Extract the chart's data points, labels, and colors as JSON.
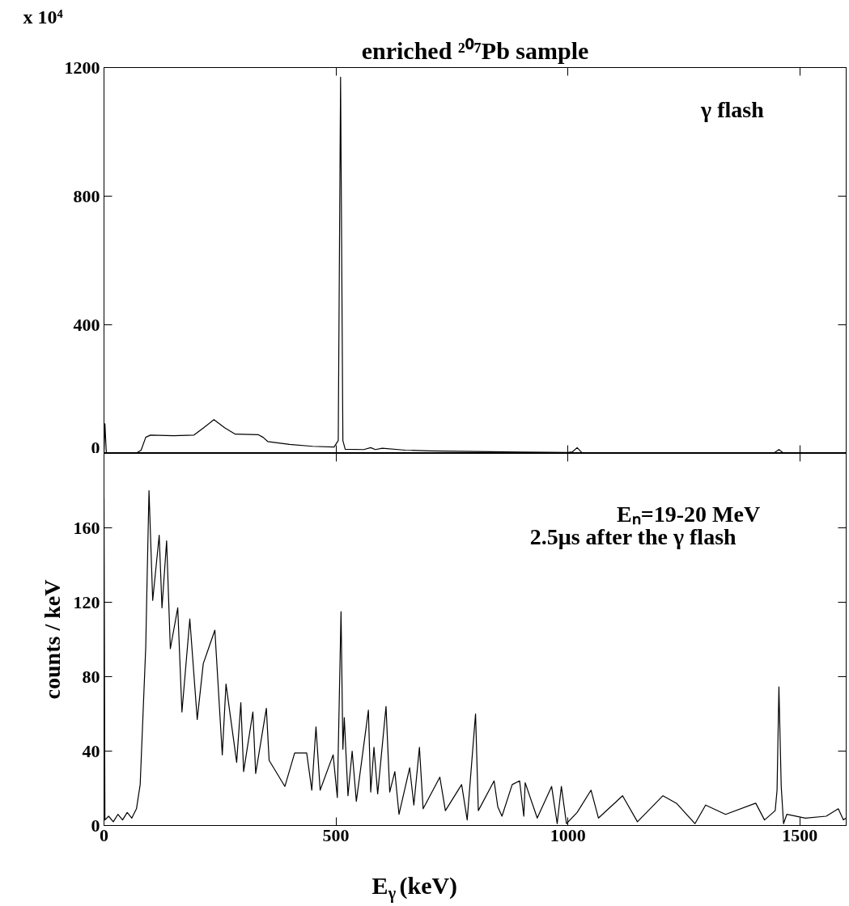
{
  "chart_data": [
    {
      "type": "line",
      "title": "enriched ²⁰⁷Pb sample",
      "annotations": [
        "x 10⁴",
        "γ flash"
      ],
      "xlim": [
        0,
        1600
      ],
      "xticks": [
        0,
        500,
        1000,
        1500
      ],
      "ylim": [
        0,
        1200
      ],
      "yticks": [
        0,
        400,
        800,
        1200
      ],
      "tick_labels": "y",
      "grid": false,
      "marker": "none",
      "line_style": "solid",
      "series": [
        {
          "color": "#000000",
          "x": [
            0,
            2,
            5,
            70,
            80,
            90,
            100,
            150,
            194,
            215,
            237,
            260,
            283,
            333,
            343,
            353,
            400,
            450,
            496,
            505,
            510,
            515,
            520,
            560,
            575,
            585,
            600,
            650,
            700,
            800,
            900,
            1000,
            1010,
            1020,
            1030,
            1100,
            1200,
            1300,
            1400,
            1445,
            1455,
            1465,
            1500,
            1600
          ],
          "values": [
            0,
            92,
            2,
            1,
            10,
            50,
            57,
            55,
            57,
            80,
            105,
            80,
            60,
            58,
            50,
            37,
            28,
            22,
            20,
            40,
            1170,
            40,
            13,
            12,
            18,
            12,
            16,
            10,
            8,
            6,
            4,
            3,
            5,
            18,
            3,
            2,
            2,
            1,
            1,
            2,
            12,
            1,
            1,
            1
          ]
        }
      ]
    },
    {
      "type": "line",
      "xlabel": "E$_{γ}$(keV)",
      "ylabel": "counts / keV",
      "annotations": [
        "Eₙ=19-20 MeV",
        "2.5μs after the γ  flash"
      ],
      "xlim": [
        0,
        1600
      ],
      "xticks": [
        0,
        500,
        1000,
        1500
      ],
      "ylim": [
        0,
        200
      ],
      "yticks": [
        0,
        40,
        80,
        120,
        160
      ],
      "grid": false,
      "marker": "none",
      "line_style": "solid",
      "series": [
        {
          "color": "#000000",
          "x": [
            0,
            2,
            10,
            20,
            30,
            40,
            50,
            60,
            70,
            78,
            90,
            93,
            97,
            105,
            119,
            125,
            135,
            143,
            159,
            168,
            185,
            201,
            214,
            239,
            255,
            263,
            286,
            295,
            301,
            321,
            327,
            350,
            356,
            390,
            411,
            437,
            448,
            457,
            466,
            494,
            503,
            511,
            515,
            518,
            526,
            535,
            544,
            570,
            575,
            582,
            590,
            608,
            616,
            627,
            636,
            659,
            668,
            680,
            688,
            724,
            736,
            771,
            783,
            801,
            807,
            841,
            849,
            858,
            880,
            896,
            905,
            908,
            934,
            965,
            977,
            986,
            997,
            1020,
            1050,
            1066,
            1118,
            1150,
            1205,
            1234,
            1274,
            1297,
            1340,
            1405,
            1424,
            1447,
            1451,
            1455,
            1460,
            1465,
            1472,
            1512,
            1557,
            1583,
            1594,
            1600
          ],
          "values": [
            176,
            3,
            5,
            2,
            6,
            3,
            7,
            4,
            9,
            22,
            96,
            133,
            180,
            121,
            156,
            117,
            153,
            95,
            117,
            61,
            111,
            57,
            87,
            105,
            38,
            76,
            34,
            66,
            29,
            61,
            28,
            63,
            35,
            21,
            39,
            39,
            19,
            53,
            19,
            38,
            15,
            115,
            41,
            58,
            16,
            40,
            13,
            62,
            18,
            42,
            17,
            64,
            18,
            29,
            6,
            31,
            11,
            42,
            9,
            26,
            8,
            22,
            3,
            60,
            8,
            24,
            10,
            5,
            22,
            24,
            5,
            23,
            4,
            21,
            1,
            21,
            1,
            7,
            19,
            4,
            16,
            2,
            16,
            12,
            1,
            11,
            6,
            12,
            3,
            8,
            19,
            74.5,
            21,
            1,
            6,
            4,
            5,
            9,
            3,
            4
          ]
        }
      ]
    }
  ]
}
